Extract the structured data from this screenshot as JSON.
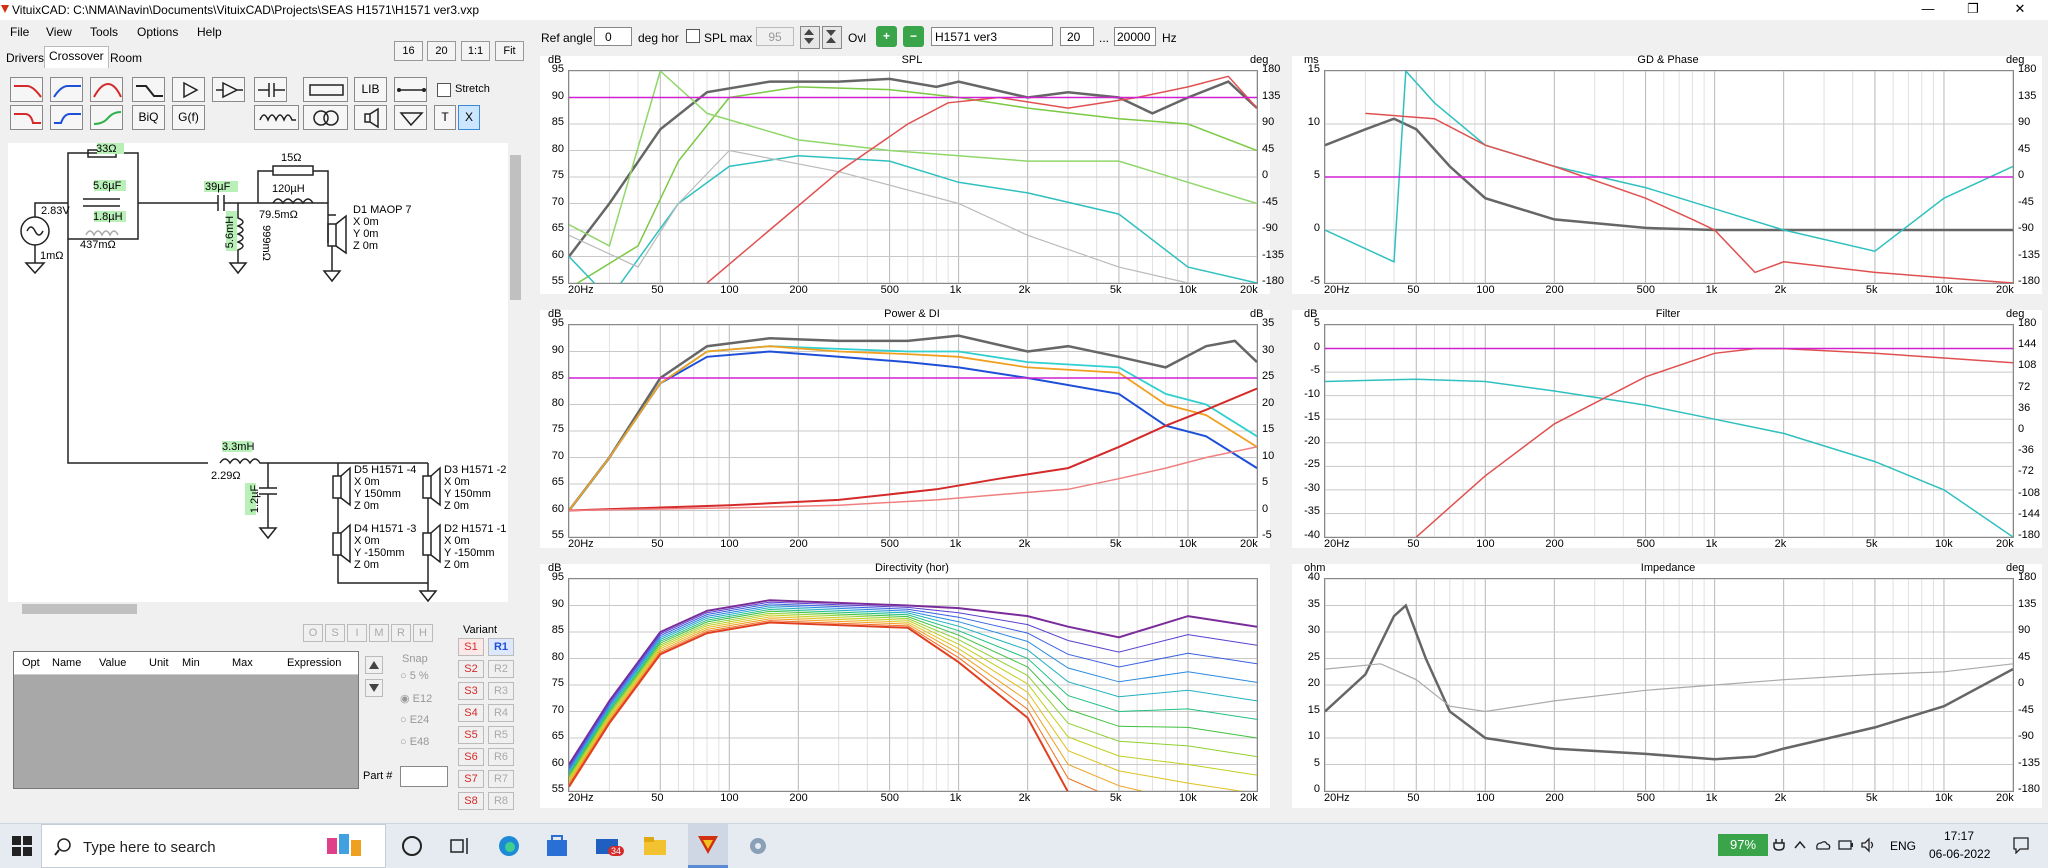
{
  "window": {
    "title": "VituixCAD: C:\\NMA\\Navin\\Documents\\VituixCAD\\Projects\\SEAS H1571\\H1571 ver3.vxp",
    "min": "—",
    "max": "❐",
    "close": "✕"
  },
  "menu": [
    "File",
    "View",
    "Tools",
    "Options",
    "Help"
  ],
  "tabs": [
    "Drivers",
    "Crossover",
    "Room"
  ],
  "zoom_buttons": [
    "16",
    "20",
    "1:1",
    "Fit"
  ],
  "toolbar": {
    "lib": "LIB",
    "biq": "BiQ",
    "gf": "G(f)",
    "stretch_label": "Stretch",
    "t": "T",
    "x": "X"
  },
  "topbar": {
    "ref_angle_label": "Ref angle",
    "ref_angle_value": "0",
    "deg_hor": "deg hor",
    "spl_max_label": "SPL max",
    "spl_max_value": "95",
    "ovl": "Ovl",
    "name_value": "H1571 ver3",
    "fmin": "20",
    "dots": "...",
    "fmax": "20000",
    "hz": "Hz"
  },
  "schematic": {
    "r33": "33Ω",
    "c56": "5.6µF",
    "l18": "1.8µH",
    "r437": "437mΩ",
    "v283": "2.83V",
    "r1m": "1mΩ",
    "c39": "39µF",
    "r15": "15Ω",
    "l120": "120µH",
    "r79": "79.5mΩ",
    "l56": "5.6mH",
    "r999": "999mΩ",
    "d1_name": "D1 MAOP 7",
    "d1_x": "X 0m",
    "d1_y": "Y 0m",
    "d1_z": "Z 0m",
    "l33": "3.3mH",
    "r229": "2.29Ω",
    "c12": "1.2µF",
    "d5_name": "D5 H1571 -4",
    "d5_x": "X 0m",
    "d5_y": "Y 150mm",
    "d5_z": "Z 0m",
    "d3_name": "D3 H1571 -2",
    "d3_x": "X 0m",
    "d3_y": "Y 150mm",
    "d3_z": "Z 0m",
    "d4_name": "D4 H1571 -3",
    "d4_x": "X 0m",
    "d4_y": "Y -150mm",
    "d4_z": "Z 0m",
    "d2_name": "D2 H1571 -1",
    "d2_x": "X 0m",
    "d2_y": "Y -150mm",
    "d2_z": "Z 0m"
  },
  "opt_table": {
    "columns": [
      "Opt",
      "Name",
      "Value",
      "Unit",
      "Min",
      "Max",
      "Expression"
    ]
  },
  "opt_letters": [
    "O",
    "S",
    "I",
    "M",
    "R",
    "H"
  ],
  "snap": {
    "label": "Snap",
    "options": [
      "5 %",
      "E12",
      "E24",
      "E48"
    ],
    "selected": "E12"
  },
  "part_label": "Part #",
  "variant": {
    "label": "Variant",
    "s": [
      "S1",
      "S2",
      "S3",
      "S4",
      "S5",
      "S6",
      "S7",
      "S8"
    ],
    "r": [
      "R1",
      "R2",
      "R3",
      "R4",
      "R5",
      "R6",
      "R7",
      "R8"
    ],
    "active_s": "S1",
    "active_r": "R1"
  },
  "colors": {
    "accent": "#1e4fd8",
    "green": "#2fb14a",
    "red": "#d42a2a",
    "teal": "#30c0c0",
    "magenta": "#d020d0"
  },
  "charts": {
    "spl": {
      "title": "SPL",
      "unit_left": "dB",
      "unit_right": "deg",
      "left_ticks": [
        "95",
        "90",
        "85",
        "80",
        "75",
        "70",
        "65",
        "60",
        "55"
      ],
      "right_ticks": [
        "180",
        "135",
        "90",
        "45",
        "0",
        "-45",
        "-90",
        "-135",
        "-180"
      ],
      "x_ticks": [
        "20Hz",
        "50",
        "100",
        "200",
        "500",
        "1k",
        "2k",
        "5k",
        "10k",
        "20k"
      ]
    },
    "gd": {
      "title": "GD & Phase",
      "unit_left": "ms",
      "unit_right": "deg",
      "left_ticks": [
        "15",
        "10",
        "5",
        "0",
        "-5"
      ],
      "right_ticks": [
        "180",
        "135",
        "90",
        "45",
        "0",
        "-45",
        "-90",
        "-135",
        "-180"
      ],
      "x_ticks": [
        "20Hz",
        "50",
        "100",
        "200",
        "500",
        "1k",
        "2k",
        "5k",
        "10k",
        "20k"
      ]
    },
    "power": {
      "title": "Power & DI",
      "unit_left": "dB",
      "unit_right": "dB",
      "left_ticks": [
        "95",
        "90",
        "85",
        "80",
        "75",
        "70",
        "65",
        "60",
        "55"
      ],
      "right_ticks": [
        "35",
        "30",
        "25",
        "20",
        "15",
        "10",
        "5",
        "0",
        "-5"
      ],
      "x_ticks": [
        "20Hz",
        "50",
        "100",
        "200",
        "500",
        "1k",
        "2k",
        "5k",
        "10k",
        "20k"
      ]
    },
    "filter": {
      "title": "Filter",
      "unit_left": "dB",
      "unit_right": "deg",
      "left_ticks": [
        "5",
        "0",
        "-5",
        "-10",
        "-15",
        "-20",
        "-25",
        "-30",
        "-35",
        "-40"
      ],
      "right_ticks": [
        "180",
        "144",
        "108",
        "72",
        "36",
        "0",
        "-36",
        "-72",
        "-108",
        "-144",
        "-180"
      ],
      "x_ticks": [
        "20Hz",
        "50",
        "100",
        "200",
        "500",
        "1k",
        "2k",
        "5k",
        "10k",
        "20k"
      ]
    },
    "directivity": {
      "title": "Directivity (hor)",
      "unit_left": "dB",
      "left_ticks": [
        "95",
        "90",
        "85",
        "80",
        "75",
        "70",
        "65",
        "60",
        "55"
      ],
      "x_ticks": [
        "20Hz",
        "50",
        "100",
        "200",
        "500",
        "1k",
        "2k",
        "5k",
        "10k",
        "20k"
      ]
    },
    "impedance": {
      "title": "Impedance",
      "unit_left": "ohm",
      "unit_right": "deg",
      "left_ticks": [
        "40",
        "35",
        "30",
        "25",
        "20",
        "15",
        "10",
        "5",
        "0"
      ],
      "right_ticks": [
        "180",
        "135",
        "90",
        "45",
        "0",
        "-45",
        "-90",
        "-135",
        "-180"
      ],
      "x_ticks": [
        "20Hz",
        "50",
        "100",
        "200",
        "500",
        "1k",
        "2k",
        "5k",
        "10k",
        "20k"
      ]
    }
  },
  "taskbar": {
    "search_placeholder": "Type here to search",
    "badge": "34",
    "battery": "97%",
    "lang": "ENG",
    "time": "17:17",
    "date": "06-06-2022"
  }
}
